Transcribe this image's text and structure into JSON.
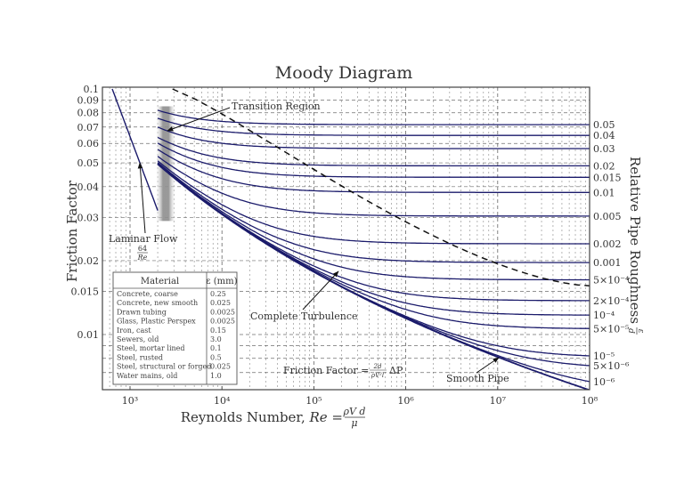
{
  "chart_data": {
    "type": "line",
    "title": "Moody Diagram",
    "xlabel": "Reynolds Number, Re = ρVd/μ",
    "ylabel": "Friction Factor",
    "y2label": "Relative Pipe Roughness ε/d",
    "xscale": "log",
    "yscale": "log",
    "xlim": [
      500,
      100000000
    ],
    "ylim": [
      0.006,
      0.1
    ],
    "grid": true,
    "x_ticks": [
      {
        "value": 1000,
        "label": "10³"
      },
      {
        "value": 10000,
        "label": "10⁴"
      },
      {
        "value": 100000,
        "label": "10⁵"
      },
      {
        "value": 1000000,
        "label": "10⁶"
      },
      {
        "value": 10000000,
        "label": "10⁷"
      },
      {
        "value": 100000000,
        "label": "10⁸"
      }
    ],
    "y_ticks": [
      {
        "value": 0.1,
        "label": "0.1"
      },
      {
        "value": 0.09,
        "label": "0.09"
      },
      {
        "value": 0.08,
        "label": "0.08"
      },
      {
        "value": 0.07,
        "label": "0.07"
      },
      {
        "value": 0.06,
        "label": "0.06"
      },
      {
        "value": 0.05,
        "label": "0.05"
      },
      {
        "value": 0.04,
        "label": "0.04"
      },
      {
        "value": 0.03,
        "label": "0.03"
      },
      {
        "value": 0.02,
        "label": "0.02"
      },
      {
        "value": 0.015,
        "label": "0.015"
      },
      {
        "value": 0.01,
        "label": "0.01"
      }
    ],
    "laminar": {
      "name": "Laminar Flow",
      "formula": "64/Re",
      "re_range": [
        640,
        2000
      ]
    },
    "turbulent_start_re": 2000,
    "series": [
      {
        "name": "0.05",
        "roughness": 0.05
      },
      {
        "name": "0.04",
        "roughness": 0.04
      },
      {
        "name": "0.03",
        "roughness": 0.03
      },
      {
        "name": "0.02",
        "roughness": 0.02
      },
      {
        "name": "0.015",
        "roughness": 0.015
      },
      {
        "name": "0.01",
        "roughness": 0.01
      },
      {
        "name": "0.005",
        "roughness": 0.005
      },
      {
        "name": "0.002",
        "roughness": 0.002
      },
      {
        "name": "0.001",
        "roughness": 0.001
      },
      {
        "name": "5×10⁻⁴",
        "roughness": 0.0005
      },
      {
        "name": "2×10⁻⁴",
        "roughness": 0.0002
      },
      {
        "name": "10⁻⁴",
        "roughness": 0.0001
      },
      {
        "name": "5×10⁻⁵",
        "roughness": 5e-05
      },
      {
        "name": "10⁻⁵",
        "roughness": 1e-05
      },
      {
        "name": "5×10⁻⁶",
        "roughness": 5e-06
      },
      {
        "name": "10⁻⁶",
        "roughness": 1e-06
      },
      {
        "name": "Smooth Pipe",
        "roughness": 0
      }
    ],
    "complete_turbulence_line": {
      "style": "dashed",
      "points": [
        [
          2900,
          0.1
        ],
        [
          100000000,
          0.0158
        ]
      ]
    },
    "transition_region": {
      "re_range": [
        2000,
        3000
      ],
      "f_range": [
        0.029,
        0.085
      ]
    },
    "annotations": [
      "Transition Region",
      "Laminar Flow 64/Re",
      "Complete Turbulence",
      "Smooth Pipe",
      "Friction Factor = 2d/(ρV²l) ΔP"
    ],
    "colors": {
      "curve": "#1b1b6b",
      "grid": "#555555",
      "dashed": "#111111",
      "transition": "#9a9a9a"
    }
  },
  "labels": {
    "title": "Moody Diagram",
    "xlabel_text": "Reynolds Number, ",
    "xlabel_re": "Re",
    "xlabel_eq": " = ",
    "xlabel_num": "ρV d",
    "xlabel_den": "μ",
    "ylabel": "Friction Factor",
    "y2label": "Relative Pipe Roughness",
    "y2label_num": "ε",
    "y2label_den": "d",
    "transition": "Transition Region",
    "laminar": "Laminar Flow",
    "laminar_num": "64",
    "laminar_den": "Re",
    "complete_turbulence": "Complete Turbulence",
    "smooth_pipe": "Smooth Pipe",
    "ff_text": "Friction Factor = ",
    "ff_num": "2d",
    "ff_den": "ρV²l",
    "ff_tail": "ΔP"
  },
  "material_table": {
    "headers": [
      "Material",
      "ε (mm)"
    ],
    "rows": [
      [
        "Concrete, coarse",
        "0.25"
      ],
      [
        "Concrete, new smooth",
        "0.025"
      ],
      [
        "Drawn tubing",
        "0.0025"
      ],
      [
        "Glass, Plastic Perspex",
        "0.0025"
      ],
      [
        "Iron, cast",
        "0.15"
      ],
      [
        "Sewers, old",
        "3.0"
      ],
      [
        "Steel, mortar lined",
        "0.1"
      ],
      [
        "Steel, rusted",
        "0.5"
      ],
      [
        "Steel, structural or forged",
        "0.025"
      ],
      [
        "Water mains, old",
        "1.0"
      ]
    ]
  }
}
